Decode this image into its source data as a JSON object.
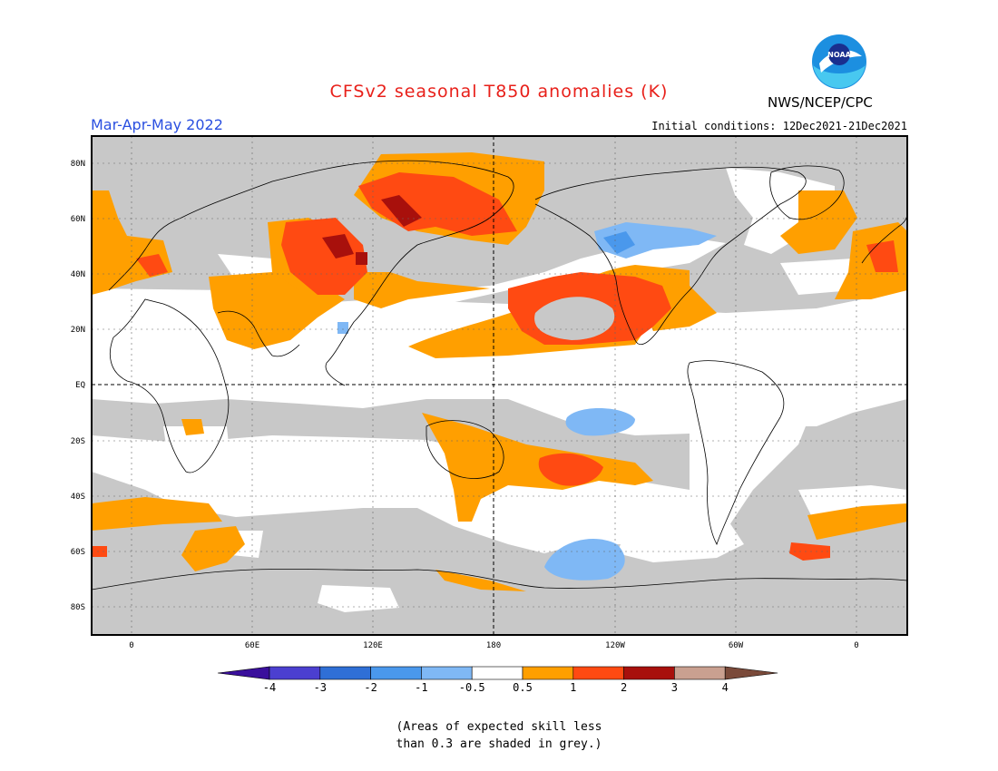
{
  "header": {
    "title": "CFSv2 seasonal T850 anomalies (K)",
    "agency": "NWS/NCEP/CPC",
    "logo_text": "NOAA",
    "season": "Mar-Apr-May 2022",
    "initial_conditions": "Initial conditions: 12Dec2021-21Dec2021"
  },
  "map": {
    "lat_labels": [
      "80N",
      "60N",
      "40N",
      "20N",
      "EQ",
      "20S",
      "40S",
      "60S",
      "80S"
    ],
    "lon_labels": [
      "0",
      "60E",
      "120E",
      "180",
      "120W",
      "60W",
      "0"
    ]
  },
  "colorbar": {
    "ticks": [
      "-4",
      "-3",
      "-2",
      "-1",
      "-0.5",
      "0.5",
      "1",
      "2",
      "3",
      "4"
    ],
    "colors": [
      "#3a0f9c",
      "#4b3fd0",
      "#2f6fd6",
      "#4a98ec",
      "#7fb8f5",
      "#ffffff",
      "#ff9f00",
      "#ff4a12",
      "#a8100c",
      "#c9a090",
      "#7a4a3a"
    ],
    "grey_color": "#c8c8c8"
  },
  "note": {
    "line1": "(Areas of expected skill less",
    "line2": "than 0.3 are shaded in grey.)"
  }
}
